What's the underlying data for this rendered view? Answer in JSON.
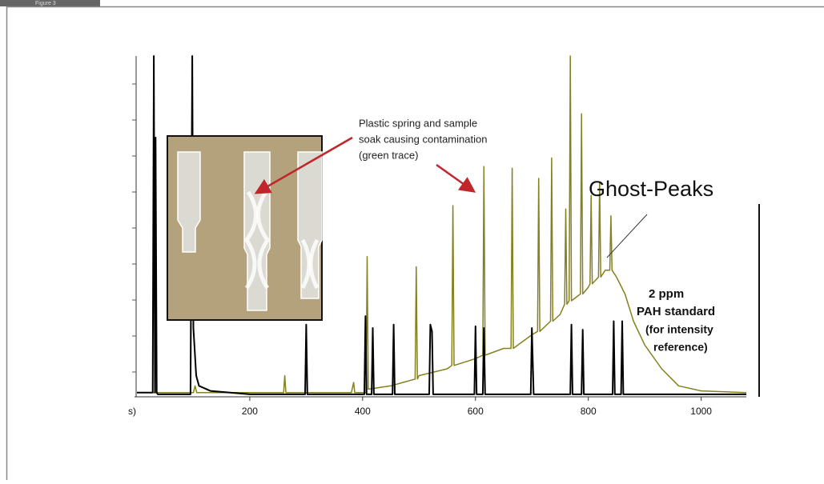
{
  "chart_data": {
    "type": "line",
    "figure_label": "Figure 3",
    "x_label": "s)",
    "xlim": [
      0,
      1080
    ],
    "xticks": [
      200,
      400,
      600,
      800,
      1000
    ],
    "ylim": [
      0,
      100
    ],
    "annotations": {
      "contamination": [
        "Plastic spring and sample",
        "soak causing contamination",
        "(green trace)"
      ],
      "ghost": "Ghost-Peaks",
      "standard": [
        "2 ppm",
        "PAH standard",
        "(for intensity",
        "reference)"
      ]
    },
    "series": [
      {
        "color": "#858020",
        "width": 1.5,
        "x": [
          0,
          100,
          103,
          106,
          200,
          260,
          262,
          264,
          380,
          384,
          386,
          400,
          406,
          408,
          410,
          450,
          493,
          495,
          497,
          500,
          550,
          558,
          560,
          562,
          600,
          613,
          615,
          617,
          650,
          663,
          665,
          667,
          700,
          710,
          712,
          714,
          733,
          735,
          737,
          750,
          758,
          760,
          762,
          766,
          768,
          770,
          786,
          788,
          790,
          800,
          803,
          805,
          807,
          818,
          820,
          822,
          830,
          838,
          840,
          842,
          850,
          865,
          880,
          900,
          930,
          960,
          1000,
          1080
        ],
        "values": [
          1,
          1,
          3,
          1,
          1,
          1,
          6,
          1,
          1,
          4,
          1,
          1,
          1,
          41,
          2,
          3,
          5,
          38,
          5,
          6,
          8,
          9,
          56,
          9,
          11,
          12,
          67.5,
          12,
          14,
          14,
          67,
          14,
          18,
          19,
          64,
          19,
          22,
          70,
          22,
          24,
          27,
          55,
          27,
          28,
          100,
          28,
          30,
          83,
          30,
          32,
          33,
          59,
          33,
          35,
          63,
          35,
          37,
          37,
          53,
          37,
          35,
          30,
          22,
          15,
          8,
          3,
          1.5,
          1
        ]
      },
      {
        "color": "#000000",
        "width": 2,
        "x": [
          0,
          28,
          30,
          32,
          33,
          35,
          37,
          95,
          98,
          100,
          105,
          110,
          130,
          200,
          298,
          300,
          302,
          403,
          405,
          407,
          416,
          418,
          420,
          453,
          455,
          457,
          518,
          520,
          523,
          525,
          598,
          600,
          602,
          613,
          615,
          617,
          698,
          700,
          703,
          768,
          770,
          772,
          788,
          790,
          792,
          843,
          845,
          847,
          858,
          860,
          862,
          900,
          1000,
          1080
        ],
        "values": [
          1,
          1,
          100,
          1,
          76,
          1,
          0.5,
          0.5,
          100,
          20,
          6,
          3,
          1.5,
          0.5,
          0.5,
          21,
          0.5,
          0.5,
          23.5,
          0.5,
          0.5,
          20,
          0.5,
          0.5,
          21,
          0.5,
          0.5,
          21,
          19,
          0.5,
          0.5,
          20.5,
          0.5,
          0.5,
          20,
          0.5,
          0.5,
          20,
          0.5,
          0.5,
          21,
          0.5,
          0.5,
          19.5,
          0.5,
          0.5,
          22,
          0.5,
          0.5,
          22,
          0.5,
          0.5,
          0.5,
          0.5
        ]
      }
    ]
  }
}
